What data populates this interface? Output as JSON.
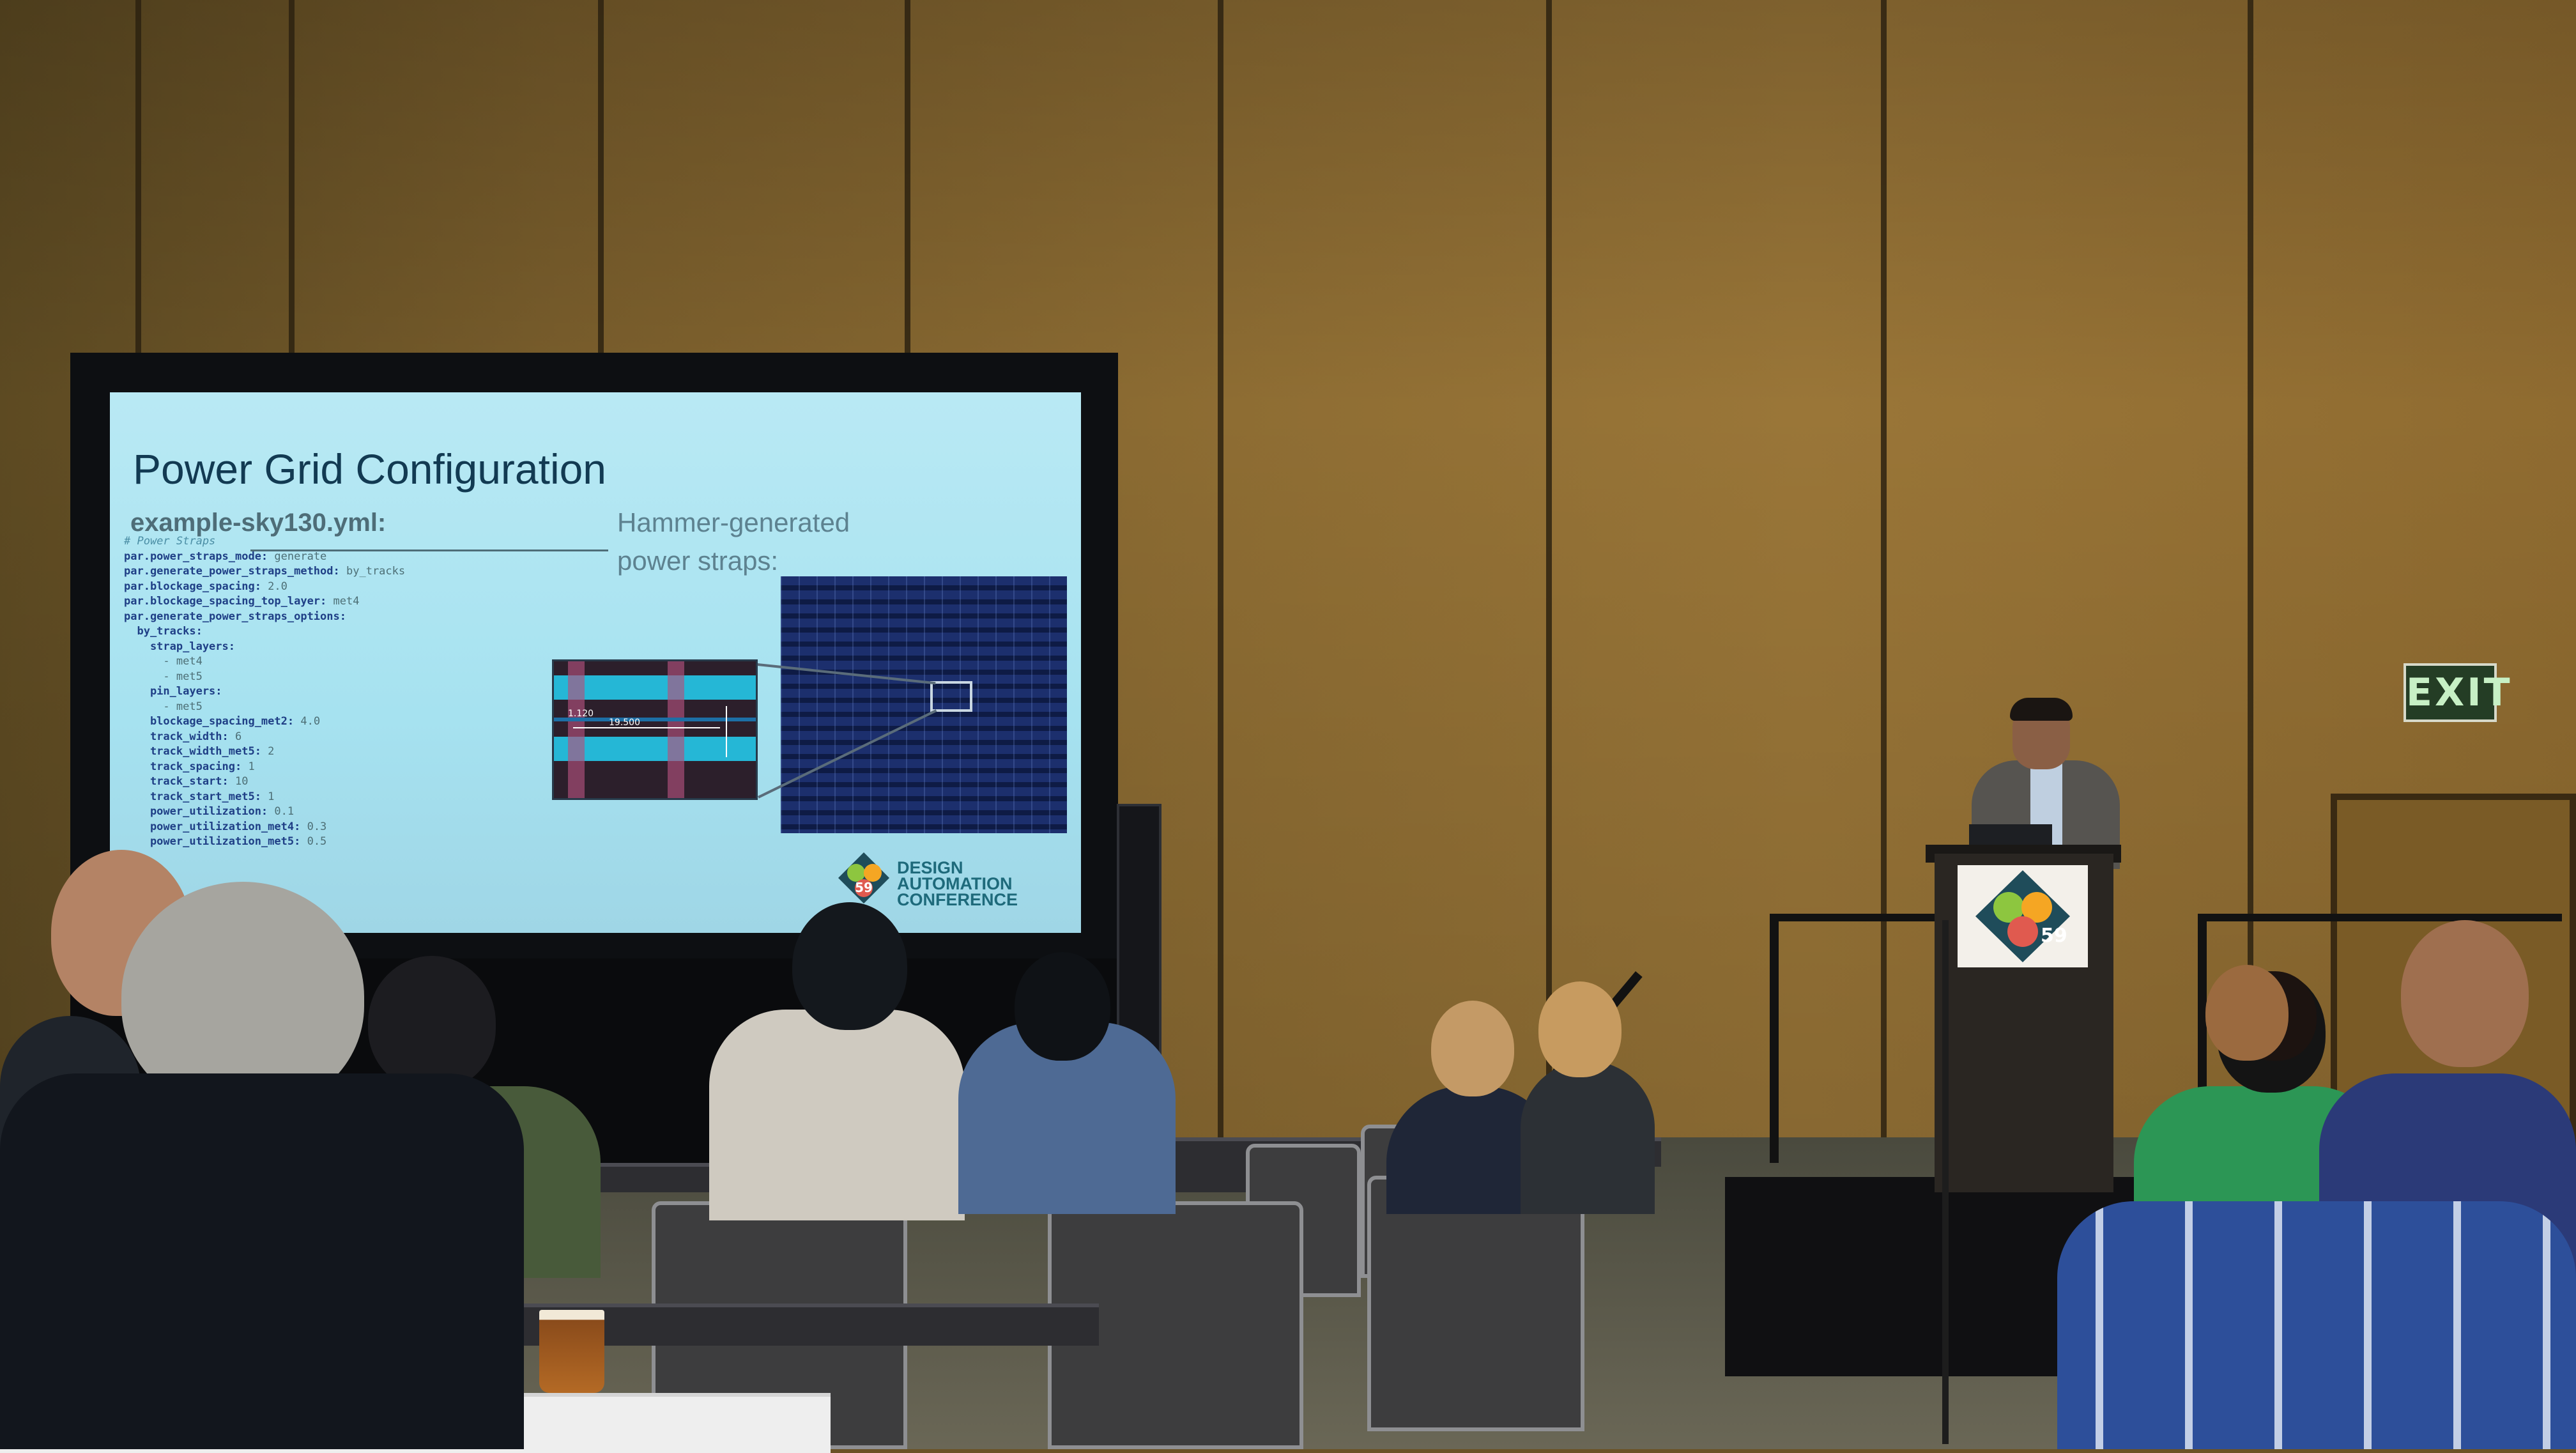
{
  "slide": {
    "title": "Power Grid Configuration",
    "filename": "example-sky130.yml:",
    "sublabel_line1": "Hammer-generated",
    "sublabel_line2": "power straps:",
    "code_lines": [
      "# Power Straps",
      "par.power_straps_mode: generate",
      "par.generate_power_straps_method: by_tracks",
      "par.blockage_spacing: 2.0",
      "par.blockage_spacing_top_layer: met4",
      "par.generate_power_straps_options:",
      "  by_tracks:",
      "    strap_layers:",
      "      - met4",
      "      - met5",
      "    pin_layers:",
      "      - met5",
      "    blockage_spacing_met2: 4.0",
      "    track_width: 6",
      "    track_width_met5: 2",
      "    track_spacing: 1",
      "    track_start: 10",
      "    track_start_met5: 1",
      "    power_utilization: 0.1",
      "    power_utilization_met4: 0.3",
      "    power_utilization_met5: 0.5"
    ],
    "inset_label_a": "1.120",
    "inset_label_b": "19.500",
    "logo_number": "59",
    "logo_text_line1": "DESIGN",
    "logo_text_line2": "AUTOMATION",
    "logo_text_line3": "CONFERENCE"
  },
  "room": {
    "exit_sign": "EXIT",
    "podium_logo_number": "59"
  },
  "colors": {
    "slide_bg": "#a6e2f0",
    "slide_title": "#123a52",
    "wall": "#8e6d33",
    "exit_sign": "#243d25"
  }
}
